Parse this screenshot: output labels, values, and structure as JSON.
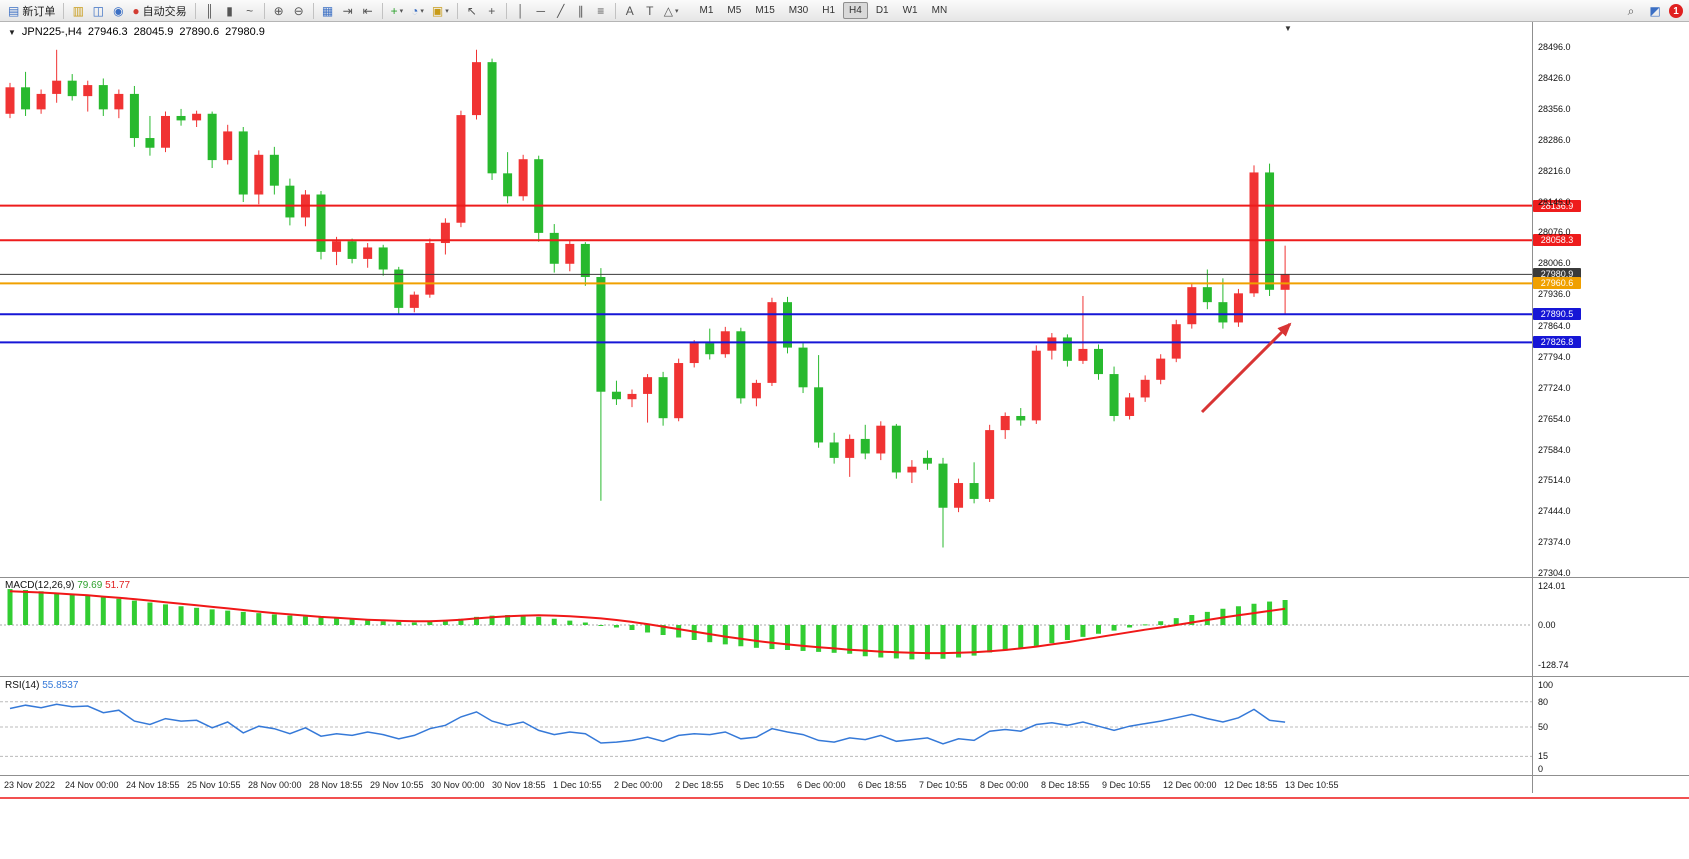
{
  "toolbar": {
    "groups": [
      [
        {
          "name": "new-order-button",
          "glyph": "▤",
          "color": "#3b6fc4",
          "label": "新订单"
        }
      ],
      [
        {
          "name": "market-watch-button",
          "glyph": "▥",
          "color": "#c89b18"
        },
        {
          "name": "data-window-button",
          "glyph": "◫",
          "color": "#3b6fc4"
        },
        {
          "name": "sound-button",
          "glyph": "◉",
          "color": "#3b6fc4"
        },
        {
          "name": "autotrading-button",
          "glyph": "●",
          "color": "#d23c32",
          "label": "自动交易"
        }
      ],
      [
        {
          "name": "bar-chart-button",
          "glyph": "║",
          "color": "#555555"
        },
        {
          "name": "candlestick-chart-button",
          "glyph": "▮",
          "color": "#555555"
        },
        {
          "name": "line-chart-button",
          "glyph": "~",
          "color": "#555555"
        }
      ],
      [
        {
          "name": "zoom-in-button",
          "glyph": "⊕",
          "color": "#555555"
        },
        {
          "name": "zoom-out-button",
          "glyph": "⊖",
          "color": "#555555"
        }
      ],
      [
        {
          "name": "tile-windows-button",
          "glyph": "▦",
          "color": "#3b6fc4"
        },
        {
          "name": "auto-scroll-button",
          "glyph": "⇥",
          "color": "#555555"
        },
        {
          "name": "chart-shift-button",
          "glyph": "⇤",
          "color": "#555555"
        }
      ],
      [
        {
          "name": "indicators-button",
          "glyph": "+",
          "color": "#2da12d",
          "caret": true
        },
        {
          "name": "periods-button",
          "glyph": "◔",
          "color": "#3b6fc4",
          "caret": true
        },
        {
          "name": "templates-button",
          "glyph": "▣",
          "color": "#c89b18",
          "caret": true
        }
      ],
      [
        {
          "name": "cursor-button",
          "glyph": "↖",
          "color": "#555555"
        },
        {
          "name": "crosshair-button",
          "glyph": "+",
          "color": "#555555"
        }
      ],
      [
        {
          "name": "vertical-line-button",
          "glyph": "│",
          "color": "#555555"
        },
        {
          "name": "horizontal-line-button",
          "glyph": "─",
          "color": "#555555"
        },
        {
          "name": "trendline-button",
          "glyph": "╱",
          "color": "#555555"
        },
        {
          "name": "channel-button",
          "glyph": "∥",
          "color": "#555555"
        },
        {
          "name": "fibonacci-button",
          "glyph": "≡",
          "color": "#555555"
        }
      ],
      [
        {
          "name": "text-button",
          "glyph": "A",
          "color": "#555555"
        },
        {
          "name": "text-label-button",
          "glyph": "T",
          "color": "#555555"
        },
        {
          "name": "arrows-button",
          "glyph": "△",
          "color": "#555555",
          "caret": true
        }
      ]
    ],
    "timeframes": {
      "items": [
        "M1",
        "M5",
        "M15",
        "M30",
        "H1",
        "H4",
        "D1",
        "W1",
        "MN"
      ],
      "active": "H4"
    },
    "right": {
      "buttons": [
        {
          "name": "search-button",
          "glyph": "⌕",
          "color": "#555555"
        },
        {
          "name": "help-button",
          "glyph": "◩",
          "color": "#3b6fc4"
        }
      ],
      "badge": "1"
    }
  },
  "chart": {
    "title": {
      "expand_icon": "▼",
      "symbol": "JPN225-,H4",
      "open": "27946.3",
      "high": "28045.9",
      "low": "27890.6",
      "close": "27980.9"
    },
    "shift_marker_icon": "▼"
  },
  "chart_data": {
    "type": "candlestick",
    "symbol": "JPN225-",
    "period": "H4",
    "current_ohlc": {
      "open": 27946.3,
      "high": 28045.9,
      "low": 27890.6,
      "close": 27980.9
    },
    "colors": {
      "up": "#f03333",
      "down": "#28b92e"
    },
    "y_ticks": [
      "28496.0",
      "28426.0",
      "28356.0",
      "28286.0",
      "28216.0",
      "28146.0",
      "28076.0",
      "28006.0",
      "27936.0",
      "27864.0",
      "27794.0",
      "27724.0",
      "27654.0",
      "27584.0",
      "27514.0",
      "27444.0",
      "27374.0",
      "27304.0"
    ],
    "x_labels": [
      "23 Nov 2022",
      "24 Nov 00:00",
      "24 Nov 18:55",
      "25 Nov 10:55",
      "28 Nov 00:00",
      "28 Nov 18:55",
      "29 Nov 10:55",
      "30 Nov 00:00",
      "30 Nov 18:55",
      "1 Dec 10:55",
      "2 Dec 00:00",
      "2 Dec 18:55",
      "5 Dec 10:55",
      "6 Dec 00:00",
      "6 Dec 18:55",
      "7 Dec 10:55",
      "8 Dec 00:00",
      "8 Dec 18:55",
      "9 Dec 10:55",
      "12 Dec 00:00",
      "12 Dec 18:55",
      "13 Dec 10:55"
    ],
    "hlines": [
      {
        "price": 28136.9,
        "label": "28136.9",
        "color": "#ee1c1c",
        "width": 2
      },
      {
        "price": 28058.3,
        "label": "28058.3",
        "color": "#ee1c1c",
        "width": 2
      },
      {
        "price": 27980.9,
        "label": "27980.9",
        "color": "#3a3a3a",
        "width": 1
      },
      {
        "price": 27960.6,
        "label": "27960.6",
        "color": "#f0a000",
        "width": 2
      },
      {
        "price": 27890.5,
        "label": "27890.5",
        "color": "#1616d6",
        "width": 2
      },
      {
        "price": 27826.8,
        "label": "27826.8",
        "color": "#1616d6",
        "width": 2
      }
    ],
    "annotation_arrow": {
      "color": "#d83434"
    },
    "candles": [
      [
        28345,
        28415,
        28335,
        28405
      ],
      [
        28405,
        28440,
        28340,
        28355
      ],
      [
        28355,
        28400,
        28345,
        28390
      ],
      [
        28390,
        28490,
        28370,
        28420
      ],
      [
        28420,
        28435,
        28375,
        28385
      ],
      [
        28385,
        28420,
        28350,
        28410
      ],
      [
        28410,
        28425,
        28340,
        28355
      ],
      [
        28355,
        28400,
        28335,
        28390
      ],
      [
        28390,
        28408,
        28270,
        28290
      ],
      [
        28290,
        28340,
        28250,
        28268
      ],
      [
        28268,
        28350,
        28258,
        28340
      ],
      [
        28340,
        28356,
        28318,
        28330
      ],
      [
        28330,
        28352,
        28315,
        28345
      ],
      [
        28345,
        28350,
        28222,
        28240
      ],
      [
        28240,
        28320,
        28230,
        28305
      ],
      [
        28305,
        28315,
        28145,
        28162
      ],
      [
        28162,
        28262,
        28140,
        28252
      ],
      [
        28252,
        28270,
        28162,
        28182
      ],
      [
        28182,
        28198,
        28092,
        28110
      ],
      [
        28110,
        28172,
        28090,
        28162
      ],
      [
        28162,
        28170,
        28015,
        28032
      ],
      [
        28032,
        28066,
        28002,
        28056
      ],
      [
        28056,
        28062,
        28006,
        28016
      ],
      [
        28016,
        28052,
        27996,
        28042
      ],
      [
        28042,
        28048,
        27978,
        27992
      ],
      [
        27992,
        27998,
        27892,
        27905
      ],
      [
        27905,
        27942,
        27895,
        27935
      ],
      [
        27935,
        28062,
        27928,
        28052
      ],
      [
        28052,
        28108,
        28026,
        28098
      ],
      [
        28098,
        28352,
        28088,
        28342
      ],
      [
        28342,
        28490,
        28332,
        28462
      ],
      [
        28462,
        28470,
        28195,
        28210
      ],
      [
        28210,
        28258,
        28142,
        28158
      ],
      [
        28158,
        28252,
        28148,
        28242
      ],
      [
        28242,
        28250,
        28055,
        28075
      ],
      [
        28075,
        28095,
        27985,
        28005
      ],
      [
        28005,
        28060,
        27988,
        28050
      ],
      [
        28050,
        28054,
        27955,
        27975
      ],
      [
        27975,
        27995,
        27468,
        27715
      ],
      [
        27715,
        27740,
        27685,
        27698
      ],
      [
        27698,
        27720,
        27680,
        27710
      ],
      [
        27710,
        27755,
        27645,
        27748
      ],
      [
        27748,
        27760,
        27638,
        27655
      ],
      [
        27655,
        27790,
        27648,
        27780
      ],
      [
        27780,
        27832,
        27770,
        27825
      ],
      [
        27825,
        27858,
        27788,
        27800
      ],
      [
        27800,
        27862,
        27792,
        27852
      ],
      [
        27852,
        27860,
        27688,
        27700
      ],
      [
        27700,
        27742,
        27682,
        27735
      ],
      [
        27735,
        27928,
        27728,
        27918
      ],
      [
        27918,
        27930,
        27802,
        27815
      ],
      [
        27815,
        27825,
        27712,
        27725
      ],
      [
        27725,
        27798,
        27588,
        27600
      ],
      [
        27600,
        27622,
        27552,
        27565
      ],
      [
        27565,
        27618,
        27522,
        27608
      ],
      [
        27608,
        27640,
        27562,
        27575
      ],
      [
        27575,
        27648,
        27560,
        27638
      ],
      [
        27638,
        27642,
        27518,
        27532
      ],
      [
        27532,
        27560,
        27508,
        27545
      ],
      [
        27565,
        27582,
        27538,
        27552
      ],
      [
        27552,
        27565,
        27362,
        27452
      ],
      [
        27452,
        27518,
        27442,
        27508
      ],
      [
        27508,
        27555,
        27462,
        27472
      ],
      [
        27472,
        27640,
        27465,
        27628
      ],
      [
        27628,
        27668,
        27608,
        27660
      ],
      [
        27660,
        27678,
        27638,
        27650
      ],
      [
        27650,
        27820,
        27642,
        27808
      ],
      [
        27808,
        27848,
        27788,
        27838
      ],
      [
        27838,
        27845,
        27772,
        27785
      ],
      [
        27785,
        27932,
        27778,
        27812
      ],
      [
        27812,
        27822,
        27742,
        27755
      ],
      [
        27755,
        27772,
        27648,
        27660
      ],
      [
        27660,
        27712,
        27652,
        27702
      ],
      [
        27702,
        27752,
        27692,
        27742
      ],
      [
        27742,
        27800,
        27732,
        27790
      ],
      [
        27790,
        27878,
        27782,
        27868
      ],
      [
        27868,
        27962,
        27858,
        27952
      ],
      [
        27952,
        27992,
        27902,
        27918
      ],
      [
        27918,
        27972,
        27858,
        27872
      ],
      [
        27872,
        27948,
        27862,
        27938
      ],
      [
        27938,
        28228,
        27930,
        28212
      ],
      [
        28212,
        28232,
        27932,
        27946
      ],
      [
        27946,
        28046,
        27891,
        27981
      ]
    ]
  },
  "macd": {
    "name": "MACD(12,26,9)",
    "main_value": "79.69",
    "signal_value": "51.77",
    "axis_labels": [
      "124.01",
      "0.00",
      "-128.74"
    ],
    "colors": {
      "histogram": "#32cd32",
      "signal": "#f01818"
    },
    "histogram": [
      115,
      112,
      108,
      104,
      100,
      96,
      90,
      84,
      78,
      72,
      66,
      60,
      55,
      50,
      46,
      42,
      38,
      34,
      30,
      27,
      24,
      21,
      18,
      15,
      12,
      10,
      8,
      10,
      14,
      20,
      26,
      30,
      32,
      30,
      26,
      20,
      14,
      8,
      0,
      -8,
      -16,
      -24,
      -32,
      -40,
      -48,
      -55,
      -62,
      -68,
      -73,
      -77,
      -80,
      -83,
      -86,
      -89,
      -92,
      -100,
      -104,
      -107,
      -110,
      -110,
      -108,
      -104,
      -98,
      -88,
      -82,
      -75,
      -67,
      -58,
      -48,
      -38,
      -28,
      -18,
      -8,
      2,
      12,
      22,
      32,
      42,
      52,
      60,
      68,
      75,
      80
    ],
    "signal": [
      108,
      106,
      104,
      101,
      98,
      95,
      91,
      87,
      83,
      78,
      73,
      68,
      63,
      58,
      53,
      48,
      43,
      38,
      34,
      30,
      26,
      23,
      20,
      17,
      15,
      13,
      12,
      12,
      14,
      17,
      21,
      25,
      28,
      30,
      31,
      30,
      28,
      25,
      21,
      16,
      10,
      3,
      -5,
      -13,
      -21,
      -29,
      -37,
      -44,
      -51,
      -57,
      -62,
      -67,
      -71,
      -75,
      -79,
      -82,
      -85,
      -87,
      -89,
      -90,
      -90,
      -89,
      -87,
      -84,
      -80,
      -75,
      -69,
      -62,
      -55,
      -47,
      -39,
      -31,
      -23,
      -15,
      -8,
      0,
      8,
      16,
      24,
      31,
      38,
      45,
      51.77
    ]
  },
  "rsi": {
    "name": "RSI(14)",
    "value": "55.8537",
    "axis_labels": [
      "100",
      "80",
      "50",
      "15",
      "0"
    ],
    "levels": [
      80,
      50,
      15
    ],
    "color": "#3579d8",
    "values": [
      72,
      76,
      73,
      77,
      74,
      75,
      67,
      70,
      57,
      53,
      60,
      57,
      58,
      49,
      56,
      43,
      51,
      48,
      42,
      49,
      39,
      42,
      40,
      44,
      41,
      36,
      40,
      48,
      52,
      62,
      68,
      57,
      52,
      56,
      46,
      41,
      44,
      42,
      31,
      32,
      34,
      38,
      33,
      40,
      42,
      41,
      44,
      36,
      38,
      48,
      44,
      41,
      34,
      32,
      37,
      35,
      40,
      33,
      35,
      37,
      30,
      36,
      34,
      45,
      47,
      45,
      53,
      55,
      52,
      56,
      51,
      46,
      51,
      54,
      57,
      61,
      65,
      60,
      56,
      61,
      71,
      58,
      55.85
    ]
  }
}
